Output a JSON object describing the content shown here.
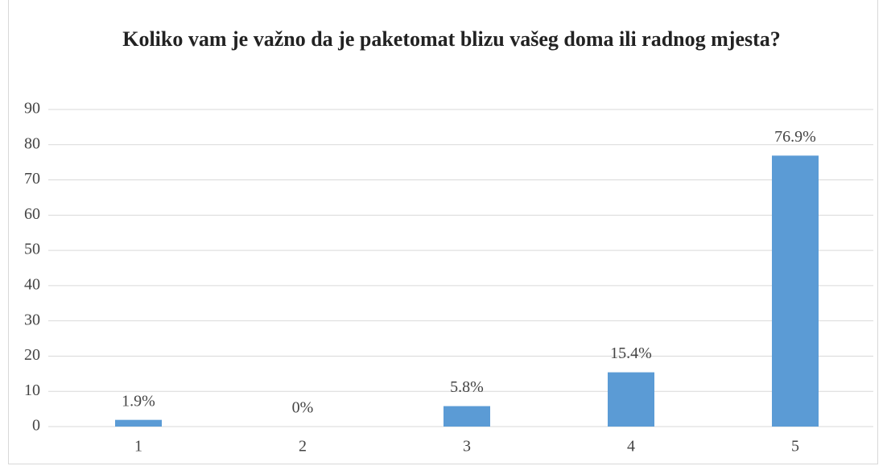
{
  "chart_data": {
    "type": "bar",
    "title": "Koliko vam je važno da je paketomat blizu vašeg doma ili radnog mjesta?",
    "categories": [
      "1",
      "2",
      "3",
      "4",
      "5"
    ],
    "values": [
      1.9,
      0,
      5.8,
      15.4,
      76.9
    ],
    "value_labels": [
      "1.9%",
      "0%",
      "5.8%",
      "15.4%",
      "76.9%"
    ],
    "color": "#5b9bd5",
    "ylim": [
      0,
      90
    ],
    "yticks": [
      0,
      10,
      20,
      30,
      40,
      50,
      60,
      70,
      80,
      90
    ],
    "grid": true
  }
}
